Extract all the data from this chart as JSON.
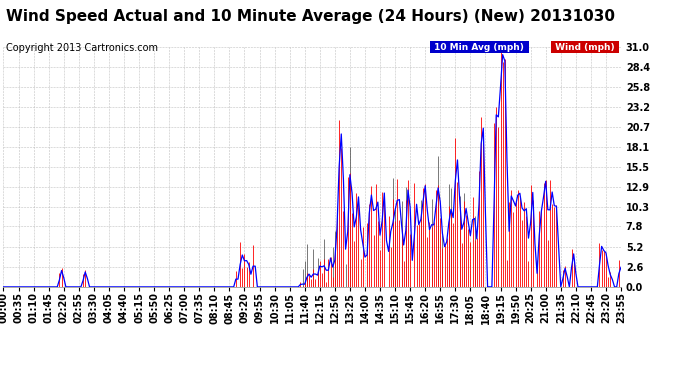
{
  "title": "Wind Speed Actual and 10 Minute Average (24 Hours) (New) 20131030",
  "copyright": "Copyright 2013 Cartronics.com",
  "yticks": [
    0.0,
    2.6,
    5.2,
    7.8,
    10.3,
    12.9,
    15.5,
    18.1,
    20.7,
    23.2,
    25.8,
    28.4,
    31.0
  ],
  "ymax": 31.0,
  "ymin": 0.0,
  "bg_color": "#ffffff",
  "plot_bg_color": "#ffffff",
  "grid_color": "#bbbbbb",
  "wind_color": "#ff0000",
  "dark_spike_color": "#444444",
  "avg_color": "#0000ff",
  "legend_avg_bg": "#0000cc",
  "legend_wind_bg": "#cc0000",
  "legend_avg_text": "10 Min Avg (mph)",
  "legend_wind_text": "Wind (mph)",
  "title_fontsize": 11,
  "copyright_fontsize": 7,
  "tick_fontsize": 7,
  "n_points": 288,
  "tick_every_n": 7
}
